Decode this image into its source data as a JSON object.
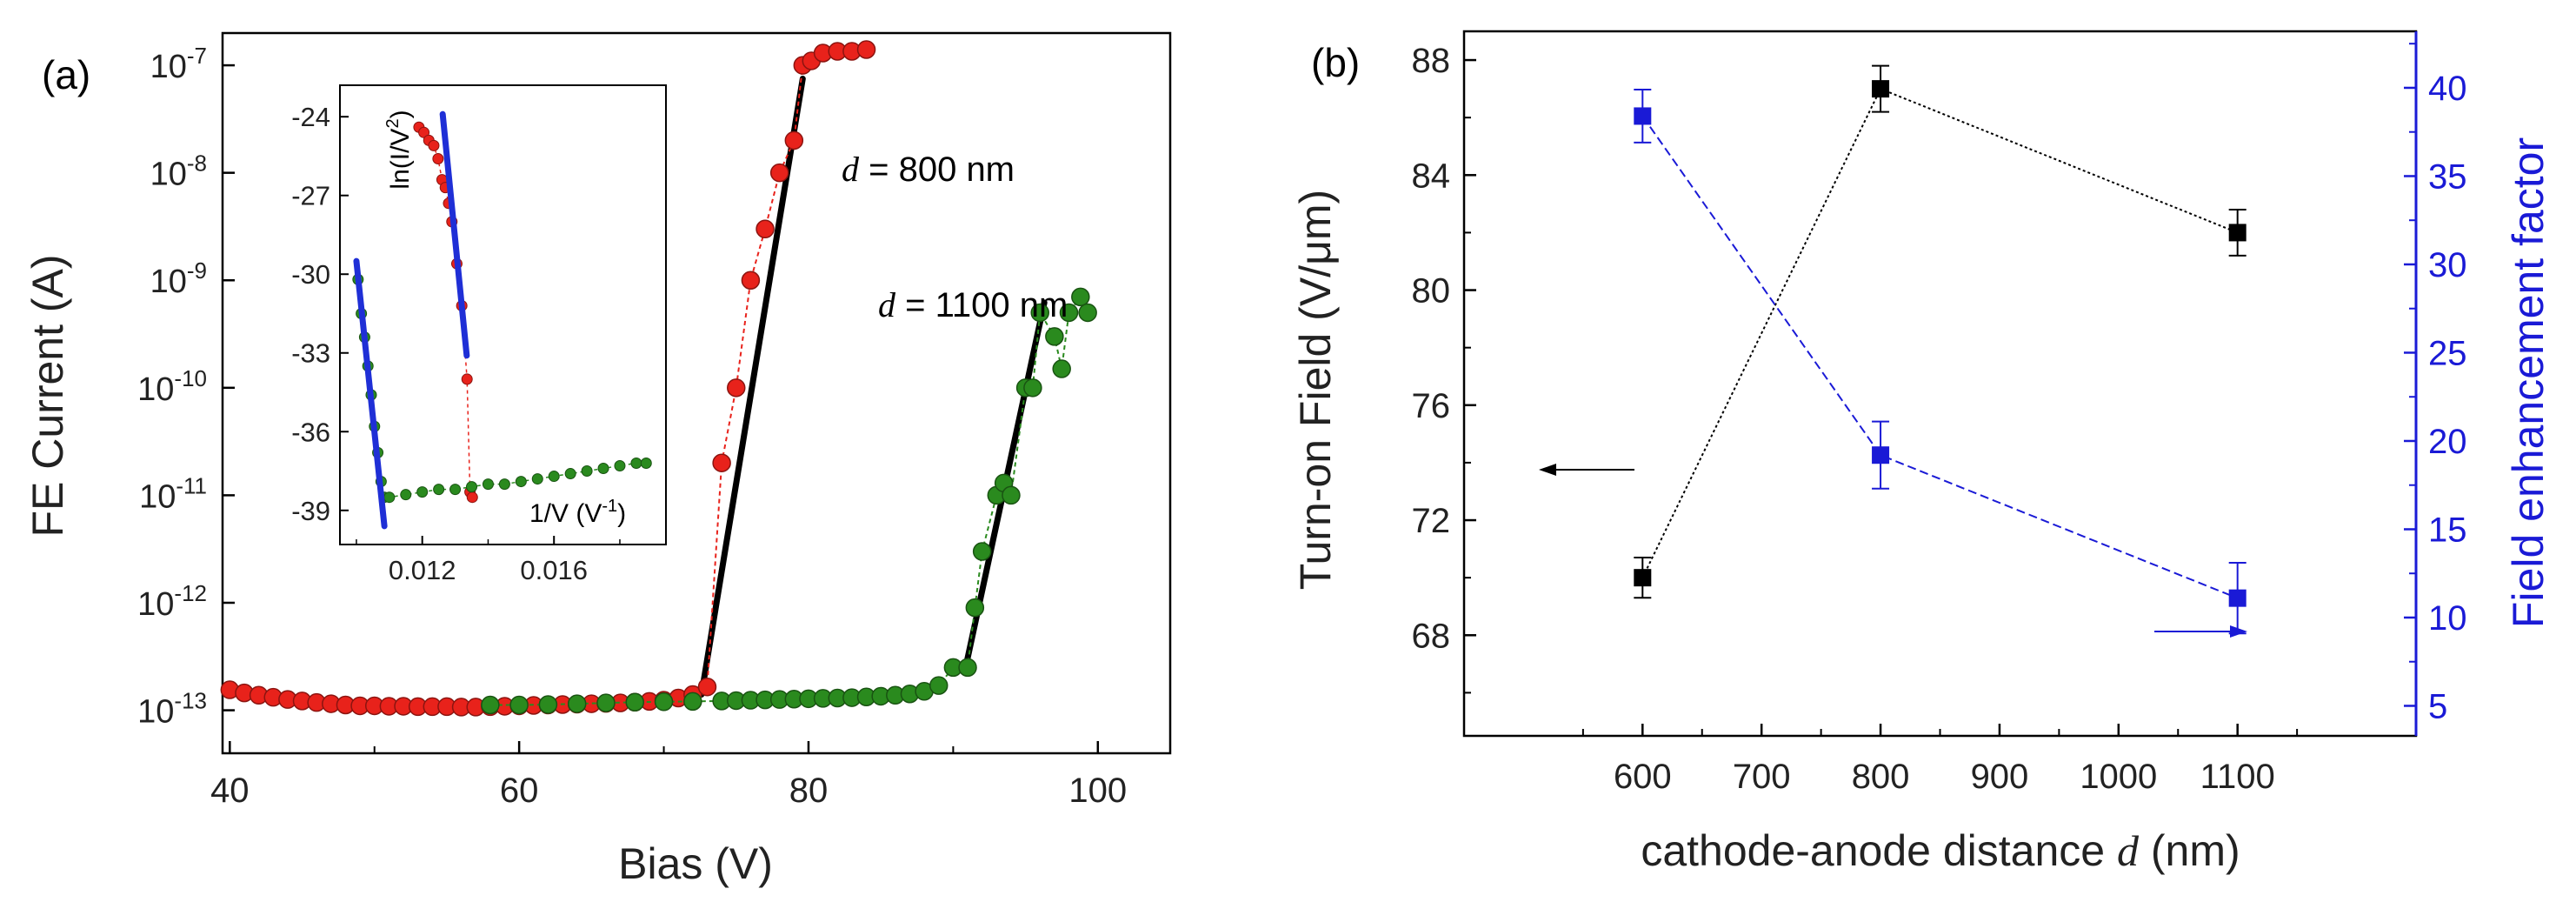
{
  "chart_data": [
    {
      "panel_label": "(a)",
      "type": "scatter",
      "xlabel": "Bias (V)",
      "ylabel": "FE Current (A)",
      "y_scale": "log",
      "xlim": [
        39.5,
        105
      ],
      "ylim_exp": [
        -13.4,
        -6.7
      ],
      "x_ticks": [
        40,
        60,
        80,
        100
      ],
      "x_tick_labels": [
        "40",
        "60",
        "80",
        "100"
      ],
      "y_tick_exps": [
        -13,
        -12,
        -11,
        -10,
        -9,
        -8,
        -7
      ],
      "y_tick_labels": [
        "10",
        "10",
        "10",
        "10",
        "10",
        "10",
        "10"
      ],
      "y_tick_exp_labels": [
        "-13",
        "-12",
        "-11",
        "-10",
        "-9",
        "-8",
        "-7"
      ],
      "series": [
        {
          "name": "d = 800 nm",
          "color": "#e8221b",
          "points": [
            [
              40,
              1.55e-13
            ],
            [
              41,
              1.45e-13
            ],
            [
              42,
              1.38e-13
            ],
            [
              43,
              1.32e-13
            ],
            [
              44,
              1.26e-13
            ],
            [
              45,
              1.22e-13
            ],
            [
              46,
              1.18e-13
            ],
            [
              47,
              1.15e-13
            ],
            [
              48,
              1.12e-13
            ],
            [
              49,
              1.1e-13
            ],
            [
              50,
              1.1e-13
            ],
            [
              51,
              1.09e-13
            ],
            [
              52,
              1.09e-13
            ],
            [
              53,
              1.08e-13
            ],
            [
              54,
              1.08e-13
            ],
            [
              55,
              1.08e-13
            ],
            [
              56,
              1.07e-13
            ],
            [
              57,
              1.07e-13
            ],
            [
              58,
              1.08e-13
            ],
            [
              59,
              1.09e-13
            ],
            [
              60,
              1.1e-13
            ],
            [
              61,
              1.11e-13
            ],
            [
              62,
              1.12e-13
            ],
            [
              63,
              1.13e-13
            ],
            [
              64,
              1.14e-13
            ],
            [
              65,
              1.15e-13
            ],
            [
              66,
              1.16e-13
            ],
            [
              67,
              1.17e-13
            ],
            [
              68,
              1.19e-13
            ],
            [
              69,
              1.21e-13
            ],
            [
              70,
              1.24e-13
            ],
            [
              71,
              1.3e-13
            ],
            [
              72,
              1.4e-13
            ],
            [
              73,
              1.65e-13
            ],
            [
              74,
              2e-11
            ],
            [
              75,
              1e-10
            ],
            [
              76,
              1e-09
            ],
            [
              77,
              3e-09
            ],
            [
              78,
              1e-08
            ],
            [
              79,
              2e-08
            ],
            [
              79.6,
              1e-07
            ],
            [
              80.2,
              1.1e-07
            ],
            [
              81,
              1.3e-07
            ],
            [
              82,
              1.35e-07
            ],
            [
              83,
              1.35e-07
            ],
            [
              84,
              1.4e-07
            ]
          ],
          "fit_line": [
            [
              72.6,
              1.4e-13
            ],
            [
              79.6,
              7.5e-08
            ]
          ]
        },
        {
          "name": "d = 1100 nm",
          "color": "#2a8a1e",
          "points": [
            [
              58,
              1.12e-13
            ],
            [
              60,
              1.12e-13
            ],
            [
              62,
              1.13e-13
            ],
            [
              64,
              1.15e-13
            ],
            [
              66,
              1.17e-13
            ],
            [
              68,
              1.19e-13
            ],
            [
              70,
              1.2e-13
            ],
            [
              72,
              1.21e-13
            ],
            [
              74,
              1.22e-13
            ],
            [
              75,
              1.23e-13
            ],
            [
              76,
              1.24e-13
            ],
            [
              77,
              1.25e-13
            ],
            [
              78,
              1.26e-13
            ],
            [
              79,
              1.27e-13
            ],
            [
              80,
              1.28e-13
            ],
            [
              81,
              1.29e-13
            ],
            [
              82,
              1.3e-13
            ],
            [
              83,
              1.31e-13
            ],
            [
              84,
              1.33e-13
            ],
            [
              85,
              1.35e-13
            ],
            [
              86,
              1.38e-13
            ],
            [
              87,
              1.42e-13
            ],
            [
              88,
              1.5e-13
            ],
            [
              89,
              1.7e-13
            ],
            [
              90,
              2.5e-13
            ],
            [
              91,
              2.5e-13
            ],
            [
              91.5,
              9e-13
            ],
            [
              92,
              3e-12
            ],
            [
              93,
              1e-11
            ],
            [
              93.5,
              1.3e-11
            ],
            [
              94,
              1e-11
            ],
            [
              95,
              1e-10
            ],
            [
              95.5,
              1e-10
            ],
            [
              96,
              5e-10
            ],
            [
              97,
              3e-10
            ],
            [
              97.5,
              1.5e-10
            ],
            [
              98,
              5e-10
            ],
            [
              98.8,
              7e-10
            ],
            [
              99.3,
              5e-10
            ]
          ],
          "fit_line": [
            [
              90.8,
              2.3e-13
            ],
            [
              96.3,
              6.2e-10
            ]
          ]
        }
      ],
      "annotations": [
        {
          "prefix": "d",
          "text": " = 800 nm"
        },
        {
          "prefix": "d",
          "text": " = 1100 nm"
        }
      ],
      "inset": {
        "type": "scatter",
        "xlabel": "1/V (V",
        "xlabel_sup": "-1",
        "xlabel_close": ")",
        "ylabel": "ln(I/V",
        "ylabel_sup": "2",
        "ylabel_close": ")",
        "xlim": [
          0.0095,
          0.0194
        ],
        "ylim": [
          -40.3,
          -22.8
        ],
        "x_ticks": [
          0.012,
          0.016
        ],
        "x_tick_labels": [
          "0.012",
          "0.016"
        ],
        "y_ticks": [
          -24,
          -27,
          -30,
          -33,
          -36,
          -39
        ],
        "y_tick_labels": [
          "-24",
          "-27",
          "-30",
          "-33",
          "-36",
          "-39"
        ],
        "series": [
          {
            "name": "d = 800 nm",
            "color": "#e8221b",
            "points": [
              [
                0.0119,
                -24.4
              ],
              [
                0.01205,
                -24.6
              ],
              [
                0.0122,
                -24.9
              ],
              [
                0.01235,
                -25.1
              ],
              [
                0.01248,
                -25.6
              ],
              [
                0.0126,
                -26.4
              ],
              [
                0.0127,
                -26.7
              ],
              [
                0.0128,
                -27.3
              ],
              [
                0.0129,
                -28.0
              ],
              [
                0.01305,
                -29.6
              ],
              [
                0.0132,
                -31.2
              ],
              [
                0.01336,
                -34.0
              ],
              [
                0.01345,
                -38.3
              ],
              [
                0.01352,
                -38.5
              ]
            ],
            "fit_line": [
              [
                0.01262,
                -23.9
              ],
              [
                0.01335,
                -33.1
              ]
            ]
          },
          {
            "name": "d = 1100 nm",
            "color": "#2a8a1e",
            "points": [
              [
                0.01005,
                -30.2
              ],
              [
                0.01015,
                -31.5
              ],
              [
                0.01025,
                -32.4
              ],
              [
                0.01035,
                -33.5
              ],
              [
                0.01045,
                -34.6
              ],
              [
                0.01055,
                -35.8
              ],
              [
                0.01065,
                -36.8
              ],
              [
                0.01075,
                -37.9
              ],
              [
                0.01085,
                -38.5
              ],
              [
                0.011,
                -38.5
              ],
              [
                0.0115,
                -38.4
              ],
              [
                0.012,
                -38.3
              ],
              [
                0.0125,
                -38.2
              ],
              [
                0.013,
                -38.2
              ],
              [
                0.0135,
                -38.1
              ],
              [
                0.014,
                -38.0
              ],
              [
                0.0145,
                -38.0
              ],
              [
                0.015,
                -37.9
              ],
              [
                0.0155,
                -37.8
              ],
              [
                0.016,
                -37.7
              ],
              [
                0.0165,
                -37.6
              ],
              [
                0.017,
                -37.5
              ],
              [
                0.0175,
                -37.4
              ],
              [
                0.018,
                -37.3
              ],
              [
                0.0185,
                -37.2
              ],
              [
                0.0188,
                -37.2
              ]
            ],
            "fit_line": [
              [
                0.01,
                -29.5
              ],
              [
                0.01085,
                -39.6
              ]
            ]
          }
        ]
      }
    },
    {
      "panel_label": "(b)",
      "type": "line",
      "xlabel_prefix": "cathode-anode distance ",
      "xlabel_italic": "d",
      "xlabel_suffix": " (nm)",
      "ylabel_left": "Turn-on Field (V/μm)",
      "ylabel_right": "Field enhancement factor",
      "xlim": [
        450,
        1250
      ],
      "ylim_left": [
        64.5,
        89
      ],
      "ylim_right": [
        3.3,
        43.2
      ],
      "x_ticks": [
        600,
        700,
        800,
        900,
        1000,
        1100
      ],
      "x_tick_labels": [
        "600",
        "700",
        "800",
        "900",
        "1000",
        "1100"
      ],
      "y_left_ticks": [
        68,
        72,
        76,
        80,
        84,
        88
      ],
      "y_left_tick_labels": [
        "68",
        "72",
        "76",
        "80",
        "84",
        "88"
      ],
      "y_right_ticks": [
        5,
        10,
        15,
        20,
        25,
        30,
        35,
        40
      ],
      "y_right_tick_labels": [
        "5",
        "10",
        "15",
        "20",
        "25",
        "30",
        "35",
        "40"
      ],
      "series": [
        {
          "name": "Turn-on Field",
          "axis": "left",
          "color": "#000000",
          "x": [
            600,
            800,
            1100
          ],
          "values": [
            70.0,
            87.0,
            82.0
          ],
          "errors": [
            0.7,
            0.8,
            0.8
          ]
        },
        {
          "name": "Field enhancement factor",
          "axis": "right",
          "color": "#1a1ad6",
          "x": [
            600,
            800,
            1100
          ],
          "values": [
            38.4,
            19.2,
            11.1
          ],
          "errors": [
            1.5,
            1.9,
            2.0
          ]
        }
      ]
    }
  ]
}
